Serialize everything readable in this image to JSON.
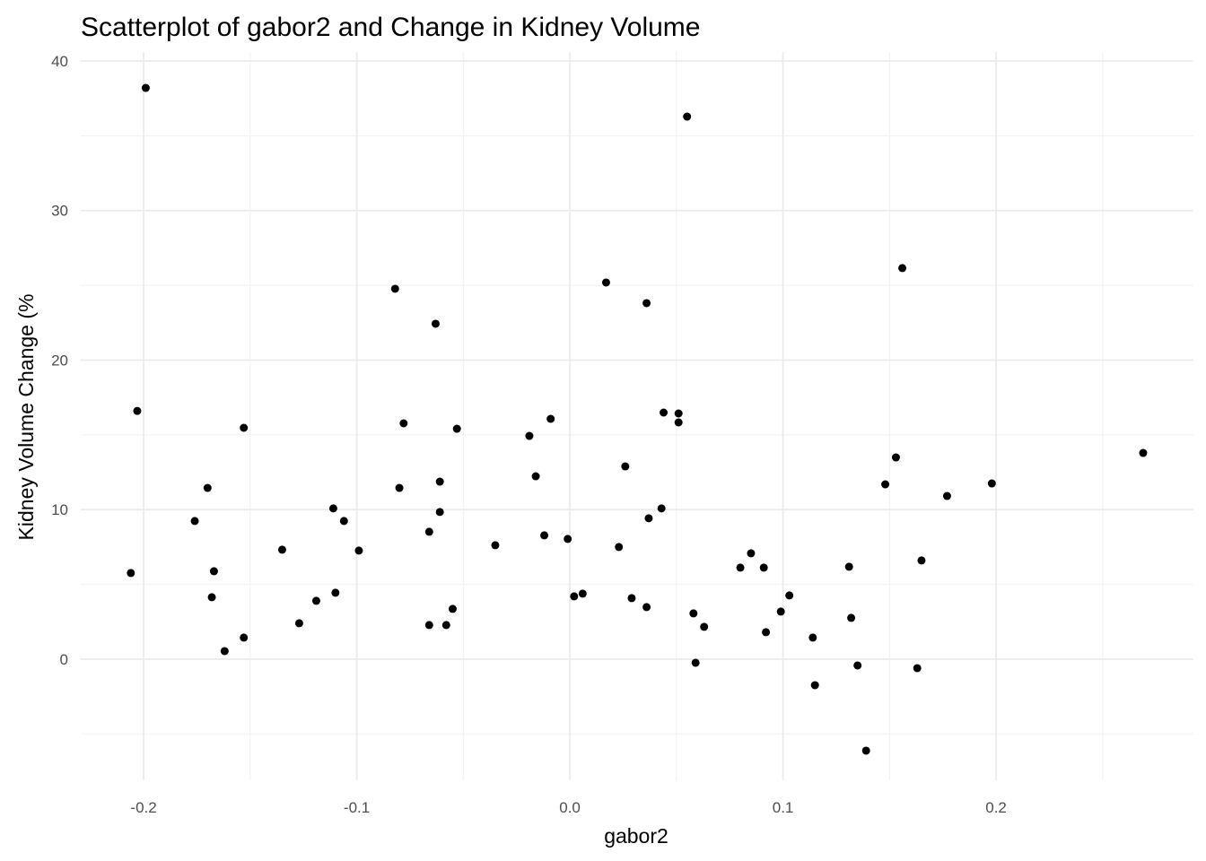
{
  "chart_data": {
    "type": "scatter",
    "title": "Scatterplot of gabor2 and Change in Kidney Volume",
    "x_label": "gabor2",
    "y_label": "Kidney Volume Change (%",
    "color": "#000000",
    "grid": true,
    "xlim": [
      -0.2295,
      0.2926
    ],
    "ylim": [
      -8.1,
      40.6
    ],
    "xticks": [
      -0.2,
      -0.1,
      {
        "value": 0,
        "label": "0.0"
      },
      0.1,
      0.2
    ],
    "yticks": [
      0,
      10,
      20,
      30,
      40
    ],
    "xminorticks": [
      -0.15,
      -0.05,
      0.05,
      0.15,
      0.25
    ],
    "yminorticks": [
      -5,
      5,
      15,
      25,
      35
    ],
    "x": [
      -0.199,
      -0.203,
      -0.206,
      -0.176,
      -0.17,
      -0.167,
      -0.168,
      -0.162,
      -0.153,
      -0.153,
      -0.135,
      -0.127,
      -0.119,
      -0.111,
      -0.11,
      -0.106,
      -0.099,
      -0.082,
      -0.08,
      -0.078,
      -0.066,
      -0.066,
      -0.063,
      -0.061,
      -0.061,
      -0.058,
      -0.055,
      -0.053,
      -0.035,
      -0.019,
      -0.016,
      -0.012,
      -0.009,
      -0.001,
      0.002,
      0.006,
      0.017,
      0.023,
      0.026,
      0.029,
      0.036,
      0.036,
      0.037,
      0.043,
      0.044,
      0.051,
      0.051,
      0.055,
      0.058,
      0.059,
      0.063,
      0.08,
      0.085,
      0.091,
      0.092,
      0.099,
      0.103,
      0.114,
      0.115,
      0.131,
      0.132,
      0.135,
      0.139,
      0.148,
      0.153,
      0.156,
      0.163,
      0.165,
      0.177,
      0.198,
      0.269
    ],
    "values": [
      38.2,
      16.6,
      5.76,
      9.24,
      11.45,
      5.88,
      4.14,
      0.54,
      15.47,
      1.44,
      7.32,
      2.4,
      3.9,
      10.08,
      4.44,
      9.24,
      7.26,
      24.77,
      11.45,
      15.77,
      8.52,
      2.28,
      22.43,
      11.87,
      9.84,
      2.28,
      3.36,
      15.41,
      7.62,
      14.93,
      12.23,
      8.28,
      16.07,
      8.04,
      4.2,
      4.38,
      25.19,
      7.5,
      12.89,
      4.08,
      23.81,
      3.48,
      9.42,
      10.08,
      16.49,
      16.43,
      15.83,
      36.28,
      3.06,
      -0.24,
      2.16,
      6.12,
      7.08,
      6.12,
      1.8,
      3.18,
      4.26,
      1.44,
      -1.74,
      6.18,
      2.76,
      -0.42,
      -6.12,
      11.69,
      13.49,
      26.15,
      -0.6,
      6.6,
      10.91,
      11.75,
      13.79
    ]
  }
}
